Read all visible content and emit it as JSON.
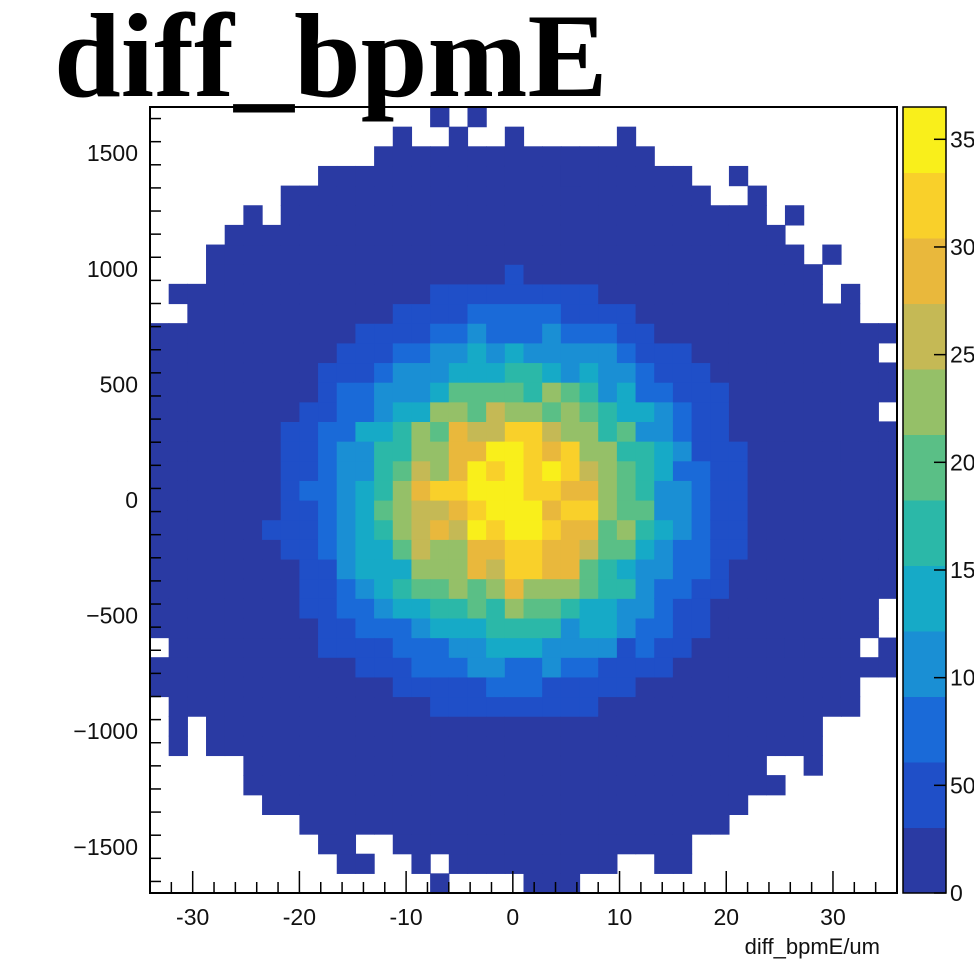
{
  "chart_data": {
    "type": "heatmap",
    "title": "diff_bpmE",
    "xlabel": "diff_bpmE/um",
    "ylabel": "",
    "xlim": [
      -34,
      36
    ],
    "ylim": [
      -1700,
      1700
    ],
    "x_ticks": [
      -30,
      -20,
      -10,
      0,
      10,
      20,
      30
    ],
    "y_ticks": [
      -1500,
      -1000,
      -500,
      0,
      500,
      1000,
      1500
    ],
    "bins": {
      "nx": 40,
      "ny": 40,
      "x_min": -34,
      "x_max": 36,
      "y_min": -1700,
      "y_max": 1700
    },
    "colorbar": {
      "range": [
        0,
        365
      ],
      "tick_labels": [
        "0",
        "50",
        "100",
        "150",
        "200",
        "250",
        "300",
        "350"
      ],
      "tick_values": [
        0,
        50,
        100,
        150,
        200,
        250,
        300,
        350
      ],
      "palette": [
        "#2a3aa3",
        "#1f4fc8",
        "#1a6ad8",
        "#1a8fd4",
        "#16aac7",
        "#2bb8a8",
        "#5abf86",
        "#95c068",
        "#c5b955",
        "#e9b83c",
        "#f9d02a",
        "#f9ef1b"
      ]
    },
    "distribution": "2D roughly gaussian, centered near (0, 0); sigma_x ~ 10 um, sigma_y ~ 430; peak counts ~ 365 at center",
    "sample_cells": [
      {
        "x": 0,
        "y": 0,
        "count": 365
      },
      {
        "x": -4,
        "y": 100,
        "count": 330
      },
      {
        "x": 5,
        "y": -100,
        "count": 300
      },
      {
        "x": -10,
        "y": 0,
        "count": 160
      },
      {
        "x": 0,
        "y": 500,
        "count": 130
      },
      {
        "x": 12,
        "y": -400,
        "count": 80
      },
      {
        "x": -20,
        "y": 0,
        "count": 15
      },
      {
        "x": 0,
        "y": -1100,
        "count": 8
      },
      {
        "x": 6,
        "y": 1420,
        "count": 1
      },
      {
        "x": -16,
        "y": -1500,
        "count": 1
      },
      {
        "x": 32,
        "y": 230,
        "count": 1
      },
      {
        "x": 26,
        "y": -620,
        "count": 1
      }
    ]
  }
}
